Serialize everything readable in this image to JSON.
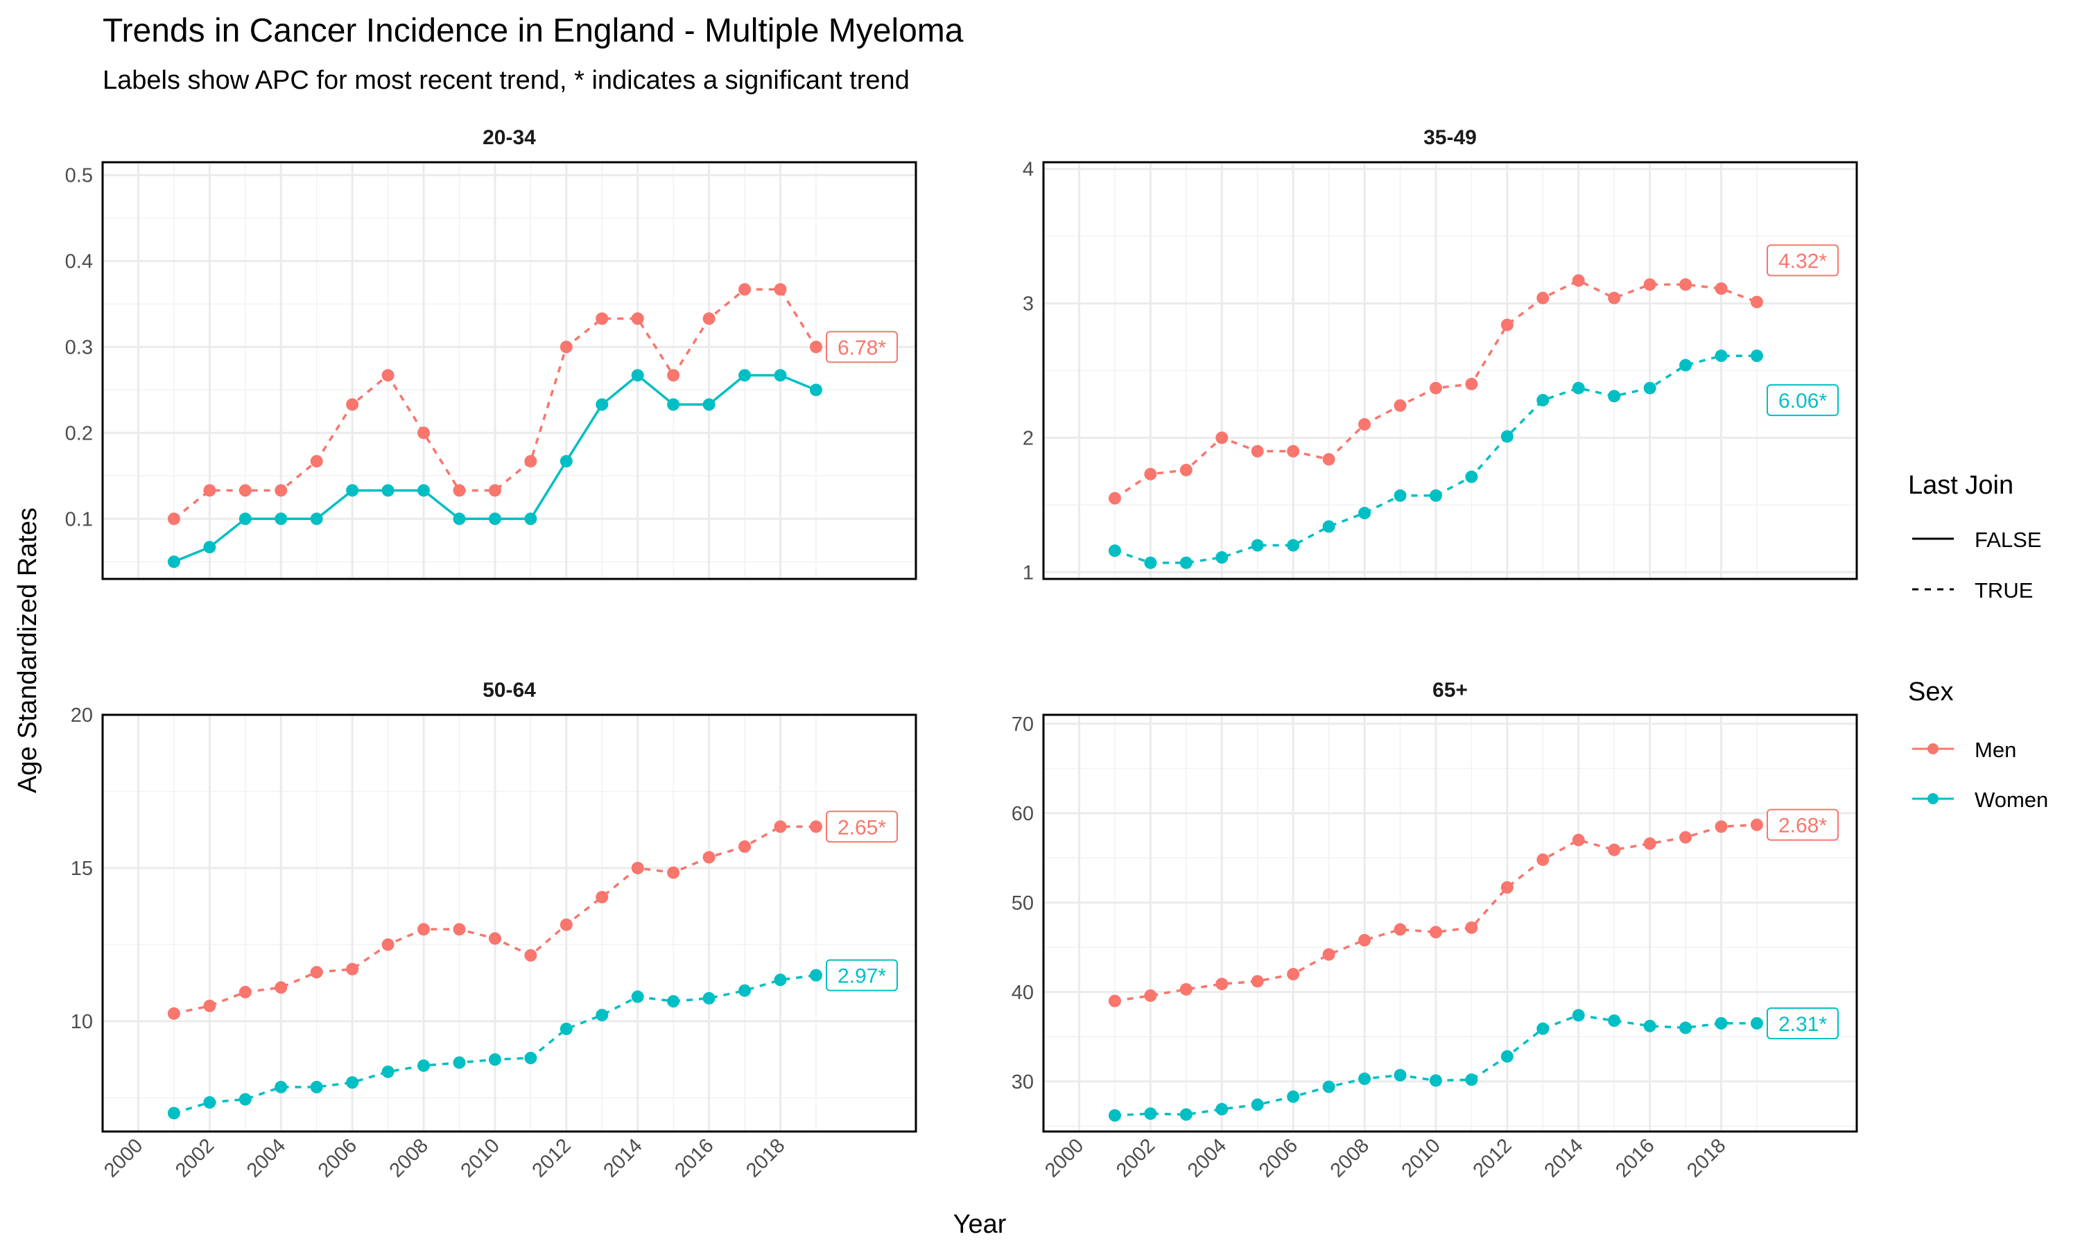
{
  "title": "Trends in Cancer Incidence in England - Multiple Myeloma",
  "subtitle": "Labels show APC for most recent trend, * indicates a significant trend",
  "xlabel": "Year",
  "ylabel": "Age Standardized Rates",
  "legend": {
    "position": "right",
    "linetype_title": "Last Join",
    "linetype_items": [
      {
        "label": "FALSE",
        "dash": "solid"
      },
      {
        "label": "TRUE",
        "dash": "dashed"
      }
    ],
    "color_title": "Sex",
    "color_items": [
      {
        "label": "Men",
        "color": "#F8766D"
      },
      {
        "label": "Women",
        "color": "#00BFC4"
      }
    ]
  },
  "colors": {
    "Men": "#F8766D",
    "Women": "#00BFC4"
  },
  "chart_data": [
    {
      "type": "line",
      "panel": "20-34",
      "x": [
        2001,
        2002,
        2003,
        2004,
        2005,
        2006,
        2007,
        2008,
        2009,
        2010,
        2011,
        2012,
        2013,
        2014,
        2015,
        2016,
        2017,
        2018,
        2019
      ],
      "xlim": [
        1999,
        2021.8
      ],
      "x_ticks": [
        2000,
        2002,
        2004,
        2006,
        2008,
        2010,
        2012,
        2014,
        2016,
        2018
      ],
      "ylim": [
        0.03,
        0.515
      ],
      "y_ticks": [
        0.1,
        0.2,
        0.3,
        0.4,
        0.5
      ],
      "y_tick_labels": [
        "0.1",
        "0.2",
        "0.3",
        "0.4",
        "0.5"
      ],
      "series": [
        {
          "name": "Men",
          "values": [
            0.1,
            0.133,
            0.133,
            0.133,
            0.167,
            0.233,
            0.267,
            0.2,
            0.133,
            0.133,
            0.167,
            0.3,
            0.333,
            0.333,
            0.267,
            0.333,
            0.367,
            0.367,
            0.3
          ],
          "last_join": true,
          "apc": "6.78*",
          "apc_value": 0.3
        },
        {
          "name": "Women",
          "values": [
            0.05,
            0.067,
            0.1,
            0.1,
            0.1,
            0.133,
            0.133,
            0.133,
            0.1,
            0.1,
            0.1,
            0.167,
            0.233,
            0.267,
            0.233,
            0.233,
            0.267,
            0.267,
            0.25
          ],
          "last_join": false,
          "apc": null
        }
      ]
    },
    {
      "type": "line",
      "panel": "35-49",
      "x": [
        2001,
        2002,
        2003,
        2004,
        2005,
        2006,
        2007,
        2008,
        2009,
        2010,
        2011,
        2012,
        2013,
        2014,
        2015,
        2016,
        2017,
        2018,
        2019
      ],
      "xlim": [
        1999,
        2021.8
      ],
      "x_ticks": [
        2000,
        2002,
        2004,
        2006,
        2008,
        2010,
        2012,
        2014,
        2016,
        2018
      ],
      "ylim": [
        0.95,
        4.05
      ],
      "y_ticks": [
        1,
        2,
        3,
        4
      ],
      "y_tick_labels": [
        "1",
        "2",
        "3",
        "4"
      ],
      "series": [
        {
          "name": "Men",
          "values": [
            1.55,
            1.73,
            1.76,
            2.0,
            1.9,
            1.9,
            1.84,
            2.1,
            2.24,
            2.37,
            2.4,
            2.84,
            3.04,
            3.17,
            3.04,
            3.14,
            3.14,
            3.11,
            3.01
          ],
          "last_join": true,
          "apc": "4.32*",
          "apc_value": 3.32
        },
        {
          "name": "Women",
          "values": [
            1.16,
            1.07,
            1.07,
            1.11,
            1.2,
            1.2,
            1.34,
            1.44,
            1.57,
            1.57,
            1.71,
            2.01,
            2.28,
            2.37,
            2.31,
            2.37,
            2.54,
            2.61,
            2.61
          ],
          "last_join": true,
          "apc": "6.06*",
          "apc_value": 2.28
        }
      ]
    },
    {
      "type": "line",
      "panel": "50-64",
      "x": [
        2001,
        2002,
        2003,
        2004,
        2005,
        2006,
        2007,
        2008,
        2009,
        2010,
        2011,
        2012,
        2013,
        2014,
        2015,
        2016,
        2017,
        2018,
        2019
      ],
      "xlim": [
        1999,
        2021.8
      ],
      "x_ticks": [
        2000,
        2002,
        2004,
        2006,
        2008,
        2010,
        2012,
        2014,
        2016,
        2018
      ],
      "ylim": [
        6.4,
        20
      ],
      "y_ticks": [
        10,
        15,
        20
      ],
      "y_tick_labels": [
        "10",
        "15",
        "20"
      ],
      "series": [
        {
          "name": "Men",
          "values": [
            10.25,
            10.5,
            10.95,
            11.1,
            11.6,
            11.7,
            12.5,
            13.0,
            13.0,
            12.7,
            12.15,
            13.15,
            14.05,
            15.0,
            14.85,
            15.35,
            15.7,
            16.35,
            16.35
          ],
          "last_join": true,
          "apc": "2.65*",
          "apc_value": 16.35
        },
        {
          "name": "Women",
          "values": [
            7.0,
            7.35,
            7.45,
            7.85,
            7.85,
            8.0,
            8.35,
            8.55,
            8.65,
            8.75,
            8.8,
            9.75,
            10.2,
            10.8,
            10.65,
            10.75,
            11.0,
            11.35,
            11.5
          ],
          "last_join": true,
          "apc": "2.97*",
          "apc_value": 11.5
        }
      ]
    },
    {
      "type": "line",
      "panel": "65+",
      "x": [
        2001,
        2002,
        2003,
        2004,
        2005,
        2006,
        2007,
        2008,
        2009,
        2010,
        2011,
        2012,
        2013,
        2014,
        2015,
        2016,
        2017,
        2018,
        2019
      ],
      "xlim": [
        1999,
        2021.8
      ],
      "x_ticks": [
        2000,
        2002,
        2004,
        2006,
        2008,
        2010,
        2012,
        2014,
        2016,
        2018
      ],
      "ylim": [
        24.4,
        71
      ],
      "y_ticks": [
        30,
        40,
        50,
        60,
        70
      ],
      "y_tick_labels": [
        "30",
        "40",
        "50",
        "60",
        "70"
      ],
      "series": [
        {
          "name": "Men",
          "values": [
            39.0,
            39.6,
            40.3,
            40.9,
            41.2,
            42.0,
            44.2,
            45.8,
            47.0,
            46.7,
            47.2,
            51.7,
            54.8,
            57.0,
            55.9,
            56.6,
            57.3,
            58.5,
            58.7
          ],
          "last_join": true,
          "apc": "2.68*",
          "apc_value": 58.7
        },
        {
          "name": "Women",
          "values": [
            26.2,
            26.4,
            26.3,
            26.9,
            27.4,
            28.3,
            29.4,
            30.3,
            30.7,
            30.1,
            30.2,
            32.8,
            35.9,
            37.4,
            36.8,
            36.2,
            36.0,
            36.5,
            36.5
          ],
          "last_join": true,
          "apc": "2.31*",
          "apc_value": 36.5
        }
      ]
    }
  ]
}
